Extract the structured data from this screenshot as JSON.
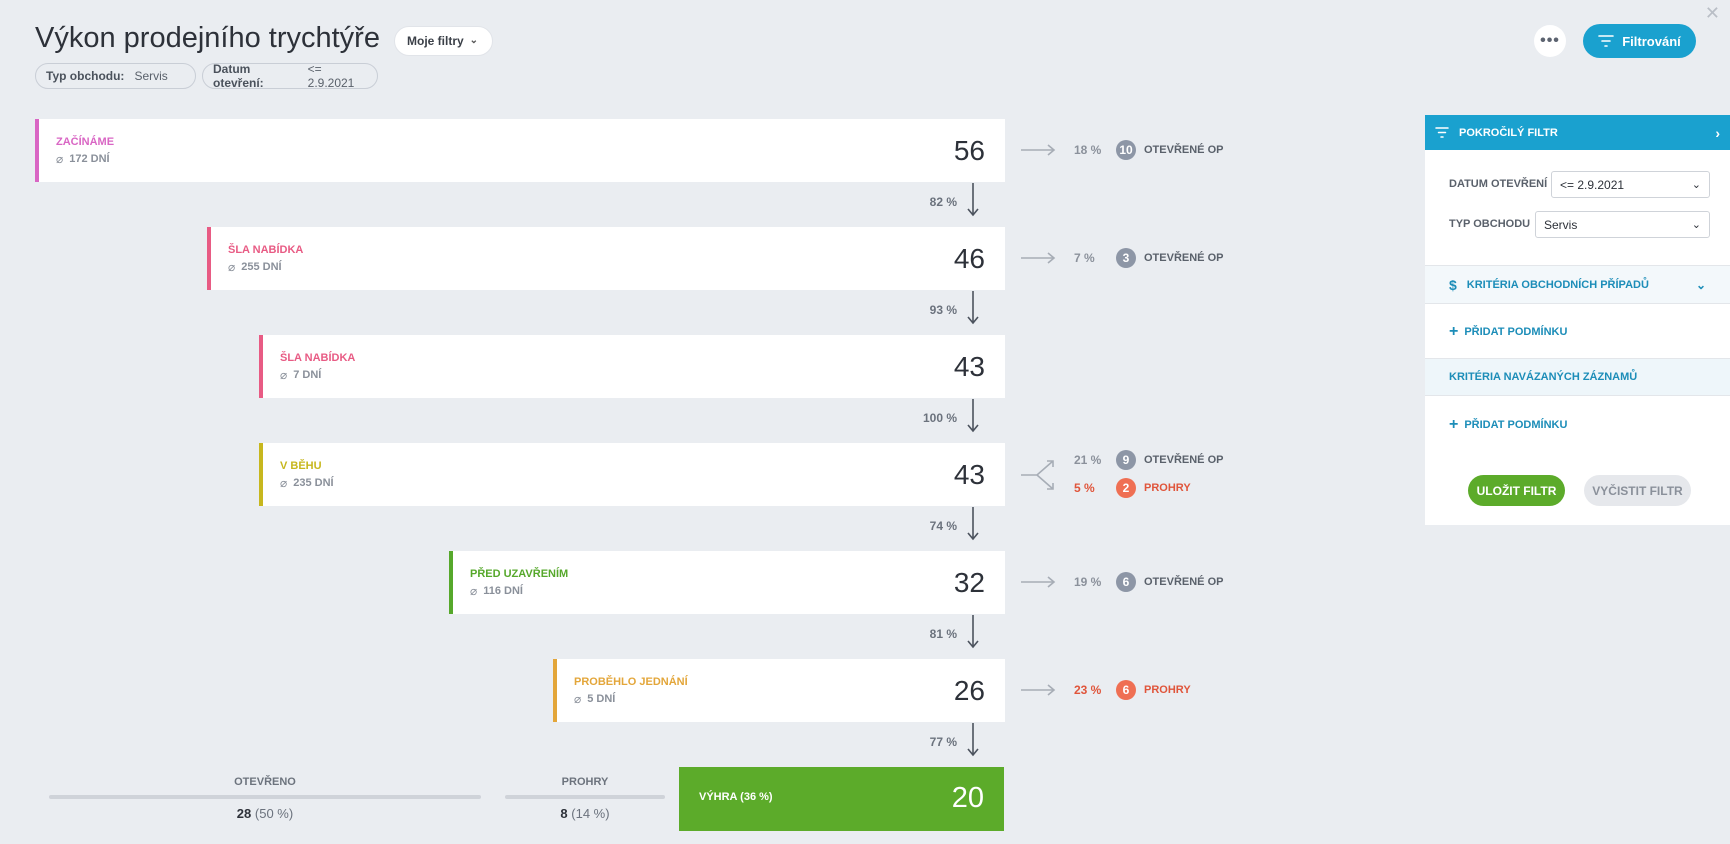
{
  "header": {
    "title": "Výkon prodejního trychtýře",
    "my_filters": "Moje filtry",
    "chips": [
      {
        "key": "Typ obchodu:",
        "value": "Servis"
      },
      {
        "key": "Datum otevření:",
        "value": "<= 2.9.2021"
      }
    ],
    "filter_button": "Filtrování"
  },
  "funnel": {
    "stages": [
      {
        "name": "ZAČÍNÁME",
        "duration": "172 DNÍ",
        "count": "56",
        "color": "#d966c4"
      },
      {
        "name": "ŠLA NABÍDKA",
        "duration": "255 DNÍ",
        "count": "46",
        "color": "#e85b84"
      },
      {
        "name": "ŠLA NABÍDKA",
        "duration": "7 DNÍ",
        "count": "43",
        "color": "#e85b84"
      },
      {
        "name": "V BĚHU",
        "duration": "235 DNÍ",
        "count": "43",
        "color": "#c7b71e"
      },
      {
        "name": "PŘED UZAVŘENÍM",
        "duration": "116 DNÍ",
        "count": "32",
        "color": "#56a82b"
      },
      {
        "name": "PROBĚHLO JEDNÁNÍ",
        "duration": "5 DNÍ",
        "count": "26",
        "color": "#e3a63a"
      }
    ],
    "conversions": [
      "82 %",
      "93 %",
      "100 %",
      "74 %",
      "81 %",
      "77 %"
    ],
    "side_outcomes": [
      {
        "pct": "18 %",
        "count": "10",
        "label": "OTEVŘENÉ OP"
      },
      {
        "pct": "7 %",
        "count": "3",
        "label": "OTEVŘENÉ OP"
      },
      {
        "pct": "21 %",
        "count": "9",
        "label": "OTEVŘENÉ OP"
      },
      {
        "pct": "5 %",
        "count": "2",
        "label": "PROHRY"
      },
      {
        "pct": "19 %",
        "count": "6",
        "label": "OTEVŘENÉ OP"
      },
      {
        "pct": "23 %",
        "count": "6",
        "label": "PROHRY"
      }
    ]
  },
  "summary": {
    "open_label": "OTEVŘENO",
    "open_count": "28",
    "open_pct": "(50 %)",
    "lost_label": "PROHRY",
    "lost_count": "8",
    "lost_pct": "(14 %)",
    "win_label": "VÝHRA",
    "win_pct": "(36 %)",
    "win_count": "20"
  },
  "panel": {
    "title": "POKROČILÝ FILTR",
    "date_label": "DATUM OTEVŘENÍ",
    "date_value": "<= 2.9.2021",
    "type_label": "TYP OBCHODU",
    "type_value": "Servis",
    "criteria_label": "KRITÉRIA OBCHODNÍCH PŘÍPADŮ",
    "add_condition_1": "PŘIDAT PODMÍNKU",
    "linked_label": "KRITÉRIA NAVÁZANÝCH ZÁZNAMŮ",
    "add_condition_2": "PŘIDAT PODMÍNKU",
    "save": "ULOŽIT FILTR",
    "clear": "VYČISTIT FILTR"
  }
}
